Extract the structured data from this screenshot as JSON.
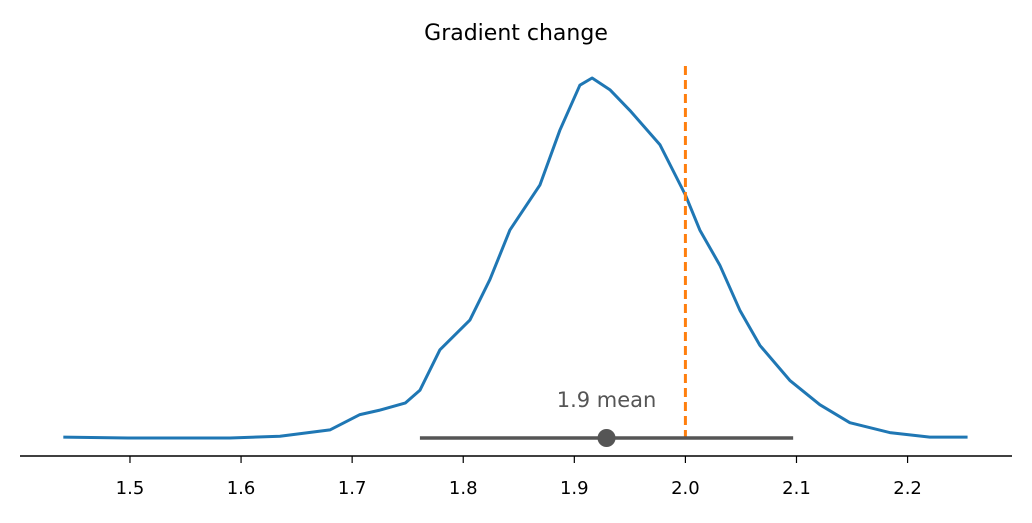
{
  "chart_data": {
    "type": "density",
    "title": "Gradient change",
    "x": [
      1.44,
      1.5,
      1.59,
      1.635,
      1.68,
      1.707,
      1.725,
      1.748,
      1.761,
      1.779,
      1.806,
      1.824,
      1.842,
      1.869,
      1.887,
      1.905,
      1.916,
      1.932,
      1.95,
      1.977,
      2.0,
      2.013,
      2.031,
      2.049,
      2.067,
      2.094,
      2.121,
      2.148,
      2.184,
      2.22,
      2.254
    ],
    "values": [
      0.01,
      0,
      0,
      0.02,
      0.09,
      0.26,
      0.31,
      0.39,
      0.53,
      0.98,
      1.31,
      1.76,
      2.31,
      2.81,
      3.42,
      3.92,
      4.0,
      3.87,
      3.64,
      3.26,
      2.7,
      2.31,
      1.92,
      1.42,
      1.03,
      0.64,
      0.37,
      0.17,
      0.06,
      0.01,
      0.01
    ],
    "color": "#1f77b4",
    "xlim": [
      1.401,
      2.294
    ],
    "ylim": [
      0,
      4.2
    ],
    "xticks": [
      1.5,
      1.6,
      1.7,
      1.8,
      1.9,
      {
        "value": 2,
        "label": "2.0"
      },
      2.1,
      2.2
    ],
    "reference_line": {
      "value": 2,
      "color": "#ff7f0e"
    },
    "hdi": [
      1.761,
      2.097
    ],
    "hdi_color": "#555555",
    "mean": 1.929,
    "mean_label": "1.9 mean"
  }
}
